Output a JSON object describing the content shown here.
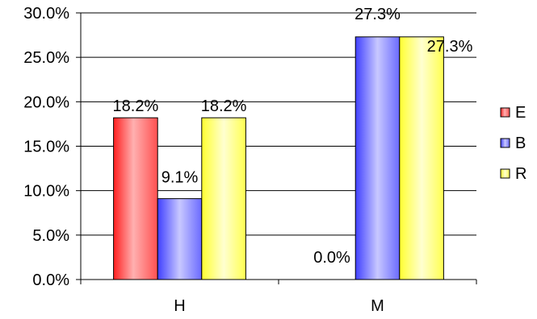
{
  "chart_data": {
    "type": "bar",
    "categories": [
      "H",
      "M"
    ],
    "series": [
      {
        "name": "E",
        "values": [
          18.2,
          0.0
        ],
        "labels": [
          "18.2%",
          "0.0%"
        ],
        "color": "#ff6666"
      },
      {
        "name": "B",
        "values": [
          9.1,
          27.3
        ],
        "labels": [
          "9.1%",
          "27.3%"
        ],
        "color": "#8a8aff"
      },
      {
        "name": "R",
        "values": [
          18.2,
          27.3
        ],
        "labels": [
          "18.2%",
          "27.3%"
        ],
        "color": "#ffff77"
      }
    ],
    "ylim": [
      0,
      30
    ],
    "yticks": [
      0,
      5,
      10,
      15,
      20,
      25,
      30
    ],
    "ytick_labels": [
      "0.0%",
      "5.0%",
      "10.0%",
      "15.0%",
      "20.0%",
      "25.0%",
      "30.0%"
    ],
    "grid": true,
    "legend_position": "right",
    "title": "",
    "xlabel": "",
    "ylabel": ""
  }
}
